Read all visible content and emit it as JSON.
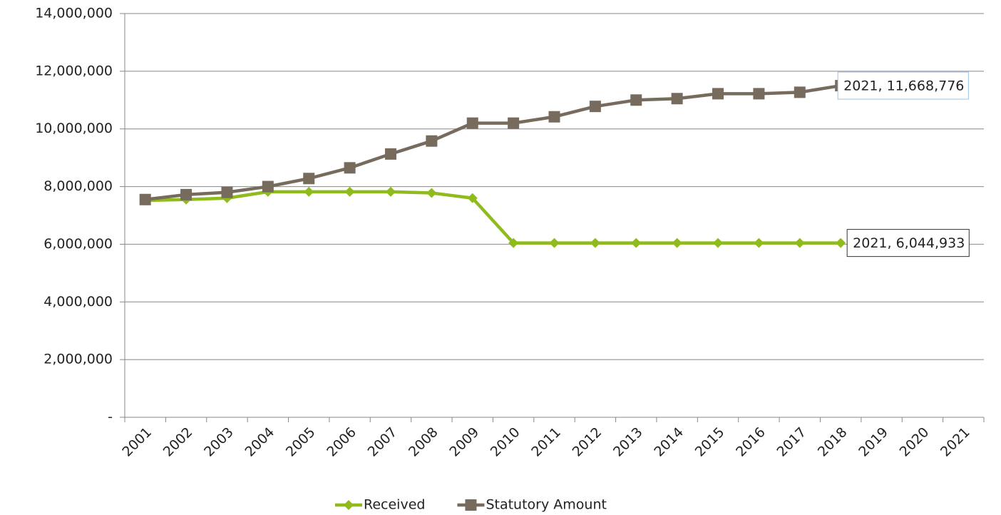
{
  "chart_data": {
    "type": "line",
    "categories": [
      "2001",
      "2002",
      "2003",
      "2004",
      "2005",
      "2006",
      "2007",
      "2008",
      "2009",
      "2010",
      "2011",
      "2012",
      "2013",
      "2014",
      "2015",
      "2016",
      "2017",
      "2018",
      "2019",
      "2020",
      "2021"
    ],
    "series": [
      {
        "name": "Received",
        "color": "#8fbc1c",
        "marker": "diamond",
        "values": [
          7520000,
          7550000,
          7600000,
          7820000,
          7820000,
          7820000,
          7820000,
          7780000,
          7600000,
          6044933,
          6044933,
          6044933,
          6044933,
          6044933,
          6044933,
          6044933,
          6044933,
          6044933,
          null,
          null,
          null
        ],
        "end_label": "2021, 6,044,933"
      },
      {
        "name": "Statutory Amount",
        "color": "#776b5d",
        "marker": "square",
        "values": [
          7550000,
          7720000,
          7800000,
          8000000,
          8280000,
          8650000,
          9130000,
          9580000,
          10200000,
          10200000,
          10420000,
          10780000,
          11000000,
          11050000,
          11220000,
          11220000,
          11270000,
          11500000,
          null,
          null,
          null
        ],
        "end_label": "2021, 11,668,776"
      }
    ],
    "ylim": [
      0,
      14000000
    ],
    "yticks": [
      {
        "value": 0,
        "label": "-"
      },
      {
        "value": 2000000,
        "label": "2,000,000"
      },
      {
        "value": 4000000,
        "label": "4,000,000"
      },
      {
        "value": 6000000,
        "label": "6,000,000"
      },
      {
        "value": 8000000,
        "label": "8,000,000"
      },
      {
        "value": 10000000,
        "label": "10,000,000"
      },
      {
        "value": 12000000,
        "label": "12,000,000"
      },
      {
        "value": 14000000,
        "label": "14,000,000"
      }
    ],
    "grid": true,
    "legend": "bottom"
  }
}
